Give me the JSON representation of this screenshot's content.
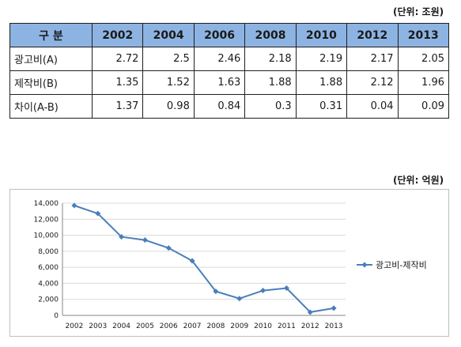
{
  "table": {
    "unit": "(단위: 조원)",
    "header_label": "구 분",
    "years": [
      "2002",
      "2004",
      "2006",
      "2008",
      "2010",
      "2012",
      "2013"
    ],
    "rows": [
      {
        "label": "광고비(A)",
        "values": [
          "2.72",
          "2.5",
          "2.46",
          "2.18",
          "2.19",
          "2.17",
          "2.05"
        ]
      },
      {
        "label": "제작비(B)",
        "values": [
          "1.35",
          "1.52",
          "1.63",
          "1.88",
          "1.88",
          "2.12",
          "1.96"
        ]
      },
      {
        "label": "차이(A-B)",
        "values": [
          "1.37",
          "0.98",
          "0.84",
          "0.3",
          "0.31",
          "0.04",
          "0.09"
        ]
      }
    ]
  },
  "chart_unit": "(단위: 억원)",
  "chart_data": {
    "type": "line",
    "categories": [
      "2002",
      "2003",
      "2004",
      "2005",
      "2006",
      "2007",
      "2008",
      "2009",
      "2010",
      "2011",
      "2012",
      "2013"
    ],
    "series": [
      {
        "name": "광고비-제작비",
        "values": [
          13700,
          12700,
          9800,
          9400,
          8400,
          6800,
          3000,
          2100,
          3100,
          3400,
          400,
          900
        ]
      }
    ],
    "ylim": [
      0,
      14000
    ],
    "yticks": [
      "0",
      "2,000",
      "4,000",
      "6,000",
      "8,000",
      "10,000",
      "12,000",
      "14,000"
    ],
    "ytick_values": [
      0,
      2000,
      4000,
      6000,
      8000,
      10000,
      12000,
      14000
    ],
    "grid": true,
    "legend": "right",
    "colors": {
      "line": "#4a7ebb",
      "grid": "#d9d9d9",
      "axis": "#868686",
      "header_bg": "#8db3e2"
    }
  }
}
